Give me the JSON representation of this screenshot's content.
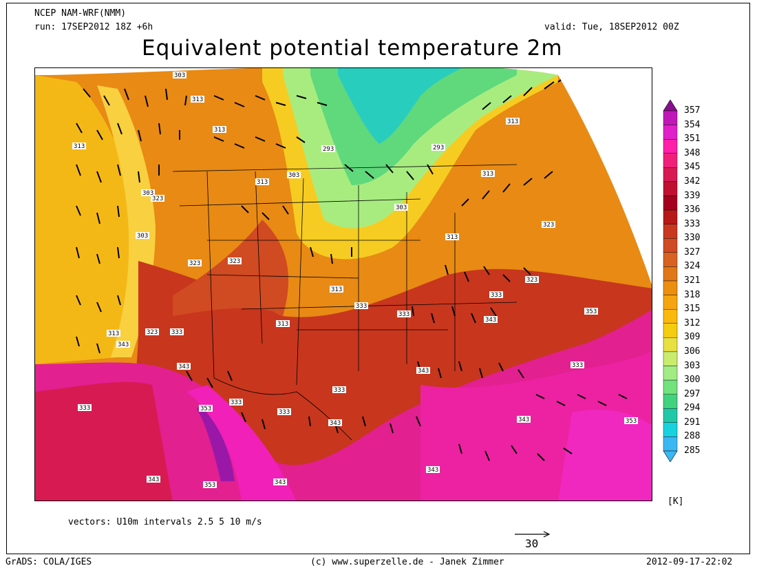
{
  "header": {
    "model": "NCEP NAM-WRF(NMM)",
    "run": "run: 17SEP2012 18Z +6h",
    "valid": "valid: Tue, 18SEP2012 00Z",
    "title": "Equivalent potential temperature 2m"
  },
  "map": {
    "field": "theta-e 2m",
    "contour_labels": [
      "303",
      "313",
      "313",
      "313",
      "303",
      "303",
      "313",
      "323",
      "293",
      "293",
      "303",
      "313",
      "323",
      "313",
      "303",
      "313",
      "323",
      "323",
      "313",
      "323",
      "313",
      "333",
      "333",
      "333",
      "313",
      "343",
      "323",
      "333",
      "343",
      "353",
      "333",
      "333",
      "333",
      "353",
      "333",
      "343",
      "333",
      "343",
      "343",
      "343",
      "343",
      "353",
      "343",
      "353",
      "343"
    ]
  },
  "colorbar": {
    "unit": "[K]",
    "levels": [
      "357",
      "354",
      "351",
      "348",
      "345",
      "342",
      "339",
      "336",
      "333",
      "330",
      "327",
      "324",
      "321",
      "318",
      "315",
      "312",
      "309",
      "306",
      "303",
      "300",
      "297",
      "294",
      "291",
      "288",
      "285"
    ],
    "colors": [
      "#8a0f8f",
      "#c018b8",
      "#e020c8",
      "#ff1fa8",
      "#f0207a",
      "#d81a52",
      "#c0102f",
      "#a5001f",
      "#b81818",
      "#c8381f",
      "#d04a22",
      "#d86222",
      "#e07818",
      "#ec8e10",
      "#f6a410",
      "#fbb90e",
      "#f6cc10",
      "#e7e040",
      "#c9ec6c",
      "#a2ec86",
      "#72e27c",
      "#40d27c",
      "#20c8a8",
      "#18d2e0",
      "#3ab8f4"
    ]
  },
  "footer": {
    "vectors": "vectors: U10m intervals 2.5 5 10 m/s",
    "ref_value": "30",
    "grads": "GrADS: COLA/IGES",
    "credit": "(c) www.superzelle.de - Janek Zimmer",
    "timestamp": "2012-09-17-22:02"
  }
}
